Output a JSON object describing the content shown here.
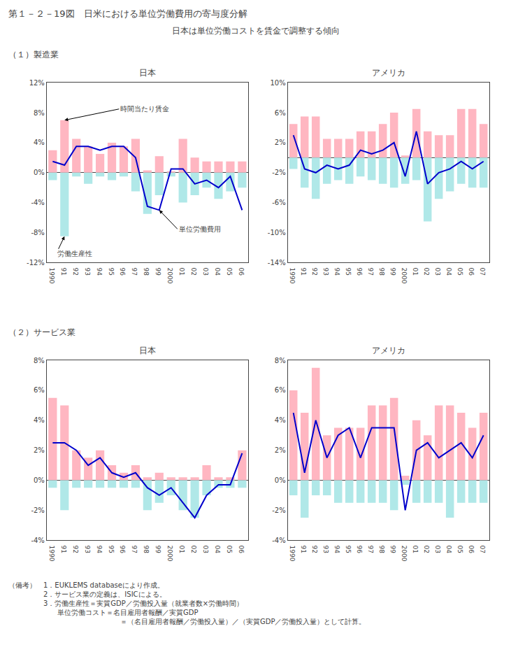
{
  "title": "第１－２－19図　日米における単位労働費用の寄与度分解",
  "subtitle": "日本は単位労働コストを賃金で調整する傾向",
  "footnotes": [
    "（備考）　1．EUKLEMS databaseにより作成。",
    "　　　　　2．サービス業の定義は、ISICによる。",
    "　　　　　3．労働生産性＝実質GDP／労働投入量（就業者数×労働時間）",
    "　　　　　　　単位労働コスト＝名目雇用者報酬／実質GDP",
    "　　　　　　　　　　　　　　　　＝（名目雇用者報酬／労働投入量）／（実質GDP／労働投入量）として計算。"
  ],
  "chart_data": [
    {
      "type": "bar",
      "section": "（１）製造業",
      "title": "日本",
      "categories": [
        "1990",
        "91",
        "92",
        "93",
        "94",
        "95",
        "96",
        "97",
        "98",
        "99",
        "2000",
        "01",
        "02",
        "03",
        "04",
        "05",
        "06"
      ],
      "series": [
        {
          "type": "bar",
          "color": "#FFB6C1",
          "values": [
            3.0,
            7.0,
            4.5,
            3.5,
            2.5,
            4.0,
            3.5,
            4.5,
            0.3,
            2.2,
            0.2,
            4.5,
            2.0,
            1.5,
            1.5,
            1.5,
            1.5
          ]
        },
        {
          "type": "bar",
          "color": "#B0E8E8",
          "values": [
            -1.0,
            -8.5,
            -0.5,
            -1.5,
            -0.5,
            -1.0,
            -0.5,
            -2.5,
            -5.5,
            -3.0,
            -0.5,
            -4.0,
            -3.0,
            -2.0,
            -3.5,
            -2.5,
            -2.0
          ]
        },
        {
          "type": "line",
          "color": "#0000CC",
          "values": [
            1.5,
            1.0,
            3.5,
            3.5,
            3.0,
            3.5,
            3.5,
            2.0,
            -4.5,
            -5.0,
            0.5,
            0.5,
            -1.5,
            -1.0,
            -2.0,
            -0.5,
            -5.0
          ]
        }
      ],
      "ylim": [
        -12,
        12
      ],
      "yticks": [
        {
          "value": -12,
          "label": "-12%"
        },
        {
          "value": -8,
          "label": "-8%"
        },
        {
          "value": -4,
          "label": "-4%"
        },
        {
          "value": 0,
          "label": "0%"
        },
        {
          "value": 4,
          "label": "4%"
        },
        {
          "value": 8,
          "label": "8%"
        },
        {
          "value": 12,
          "label": "12%"
        }
      ],
      "grid": false,
      "annotations": [
        {
          "text": "時間当たり賃金",
          "category": "91",
          "value": 7.0
        },
        {
          "text": "労働生産性",
          "category": "91",
          "value": -8.5
        },
        {
          "text": "単位労働費用",
          "category": "99",
          "value": -5.0
        }
      ]
    },
    {
      "type": "bar",
      "title": "アメリカ",
      "categories": [
        "1990",
        "91",
        "92",
        "93",
        "94",
        "95",
        "96",
        "97",
        "98",
        "99",
        "2000",
        "01",
        "02",
        "03",
        "04",
        "05",
        "06",
        "07"
      ],
      "series": [
        {
          "type": "bar",
          "color": "#FFB6C1",
          "values": [
            4.5,
            5.5,
            5.5,
            2.5,
            2.5,
            2.5,
            3.5,
            3.5,
            4.5,
            6.0,
            0.3,
            6.5,
            3.5,
            3.0,
            3.0,
            6.5,
            6.5,
            4.5
          ]
        },
        {
          "type": "bar",
          "color": "#B0E8E8",
          "values": [
            -1.5,
            -4.0,
            -5.5,
            -3.5,
            -3.0,
            -3.5,
            -2.5,
            -3.0,
            -3.5,
            -4.0,
            -3.5,
            -3.0,
            -8.5,
            -5.5,
            -4.5,
            -3.5,
            -4.0,
            -4.0
          ]
        },
        {
          "type": "line",
          "color": "#0000CC",
          "values": [
            3.0,
            -1.5,
            -2.0,
            -1.0,
            -1.5,
            -1.0,
            1.0,
            0.5,
            1.0,
            2.0,
            -2.5,
            3.5,
            -3.5,
            -2.0,
            -1.5,
            -0.5,
            -1.5,
            -0.5
          ]
        }
      ],
      "ylim": [
        -14,
        10
      ],
      "yticks": [
        {
          "value": -14,
          "label": "-14%"
        },
        {
          "value": -10,
          "label": "-10%"
        },
        {
          "value": -6,
          "label": "-6%"
        },
        {
          "value": -2,
          "label": "-2%"
        },
        {
          "value": 2,
          "label": "2%"
        },
        {
          "value": 6,
          "label": "6%"
        },
        {
          "value": 10,
          "label": "10%"
        }
      ],
      "grid": false
    },
    {
      "type": "bar",
      "section": "（２）サービス業",
      "title": "日本",
      "categories": [
        "1990",
        "91",
        "92",
        "93",
        "94",
        "95",
        "96",
        "97",
        "98",
        "99",
        "2000",
        "01",
        "02",
        "03",
        "04",
        "05",
        "06"
      ],
      "series": [
        {
          "type": "bar",
          "color": "#FFB6C1",
          "values": [
            5.5,
            5.0,
            2.0,
            1.5,
            2.0,
            1.0,
            0.5,
            1.0,
            0.2,
            0.5,
            0.2,
            0.2,
            0.2,
            1.0,
            0.2,
            0.2,
            2.0
          ]
        },
        {
          "type": "bar",
          "color": "#B0E8E8",
          "values": [
            -0.5,
            -2.0,
            -0.5,
            -0.5,
            -0.5,
            -0.5,
            -0.5,
            -0.5,
            -2.0,
            -1.5,
            -1.0,
            -2.0,
            -2.5,
            -1.0,
            -0.5,
            -0.5,
            -0.5
          ]
        },
        {
          "type": "line",
          "color": "#0000CC",
          "values": [
            2.5,
            2.5,
            2.0,
            1.0,
            1.5,
            0.5,
            0.2,
            0.5,
            -0.5,
            -1.0,
            -0.5,
            -1.5,
            -2.5,
            -1.0,
            -0.3,
            -0.3,
            1.8
          ]
        }
      ],
      "ylim": [
        -4,
        8
      ],
      "yticks": [
        {
          "value": -4,
          "label": "-4%"
        },
        {
          "value": -2,
          "label": "-2%"
        },
        {
          "value": 0,
          "label": "0%"
        },
        {
          "value": 2,
          "label": "2%"
        },
        {
          "value": 4,
          "label": "4%"
        },
        {
          "value": 6,
          "label": "6%"
        },
        {
          "value": 8,
          "label": "8%"
        }
      ],
      "grid": false
    },
    {
      "type": "bar",
      "title": "アメリカ",
      "categories": [
        "1990",
        "91",
        "92",
        "93",
        "94",
        "95",
        "96",
        "97",
        "98",
        "99",
        "2000",
        "01",
        "02",
        "03",
        "04",
        "05",
        "06",
        "07"
      ],
      "series": [
        {
          "type": "bar",
          "color": "#FFB6C1",
          "values": [
            6.0,
            4.5,
            7.5,
            3.0,
            3.5,
            3.5,
            3.5,
            5.0,
            5.0,
            5.5,
            0.3,
            4.0,
            3.0,
            5.0,
            5.0,
            4.5,
            3.5,
            4.5
          ]
        },
        {
          "type": "bar",
          "color": "#B0E8E8",
          "values": [
            -1.0,
            -2.5,
            -1.0,
            -1.0,
            -1.5,
            -1.5,
            -1.5,
            -1.5,
            -1.5,
            -2.0,
            -0.3,
            -1.5,
            -1.5,
            -1.5,
            -2.5,
            -1.5,
            -1.5,
            -1.5
          ]
        },
        {
          "type": "line",
          "color": "#0000CC",
          "values": [
            4.5,
            0.5,
            4.0,
            1.5,
            3.0,
            3.5,
            1.5,
            3.5,
            3.5,
            3.5,
            -2.0,
            2.0,
            2.5,
            1.5,
            2.0,
            2.5,
            1.5,
            3.0
          ]
        }
      ],
      "ylim": [
        -4,
        8
      ],
      "yticks": [
        {
          "value": -4,
          "label": "-4%"
        },
        {
          "value": -2,
          "label": "-2%"
        },
        {
          "value": 0,
          "label": "0%"
        },
        {
          "value": 2,
          "label": "2%"
        },
        {
          "value": 4,
          "label": "4%"
        },
        {
          "value": 6,
          "label": "6%"
        },
        {
          "value": 8,
          "label": "8%"
        }
      ],
      "grid": false
    }
  ]
}
